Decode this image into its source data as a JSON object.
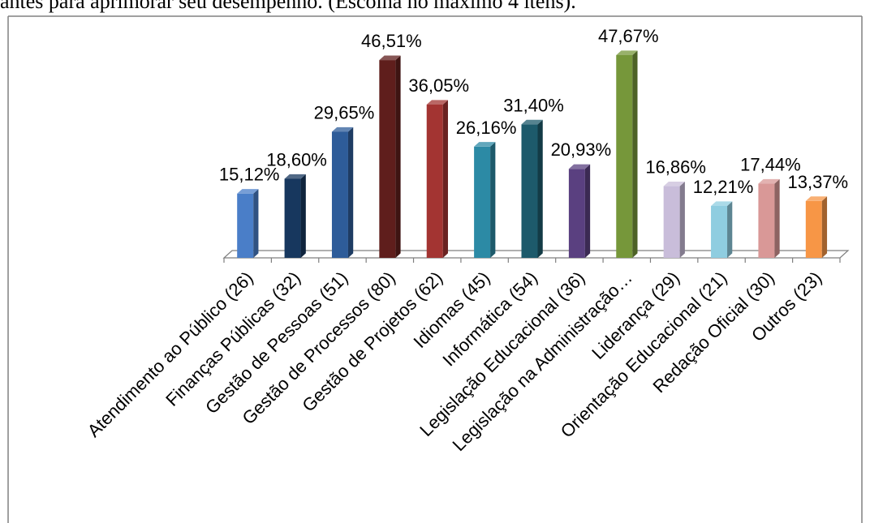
{
  "header": {
    "text": "antes para aprimorar seu desempenho. (Escolha no máximo 4 itens)."
  },
  "chart_data": {
    "type": "bar",
    "ylim": [
      0,
      50
    ],
    "grid": false,
    "legend": "none",
    "categories": [
      "Atendimento ao Público (26)",
      "Finanças Públicas (32)",
      "Gestão de Pessoas (51)",
      "Gestão de Processos (80)",
      "Gestão de Projetos (62)",
      "Idiomas (45)",
      "Informática (54)",
      "Legislação Educacional (36)",
      "Legislação na Administração…",
      "Liderança (29)",
      "Orientação Educacional (21)",
      "Redação Oficial (30)",
      "Outros (23)"
    ],
    "values": [
      15.12,
      18.6,
      29.65,
      46.51,
      36.05,
      26.16,
      31.4,
      20.93,
      47.67,
      16.86,
      12.21,
      17.44,
      13.37
    ],
    "data_labels": [
      "15,12%",
      "18,60%",
      "29,65%",
      "46,51%",
      "36,05%",
      "26,16%",
      "31,40%",
      "20,93%",
      "47,67%",
      "16,86%",
      "12,21%",
      "17,44%",
      "13,37%"
    ],
    "colors": [
      "#4a7ec8",
      "#17375e",
      "#2e5c99",
      "#5f1e1c",
      "#a33432",
      "#2c8aa5",
      "#1d5a6b",
      "#5a4080",
      "#76973a",
      "#c9bdda",
      "#8fcde0",
      "#d99897",
      "#f79646"
    ]
  }
}
